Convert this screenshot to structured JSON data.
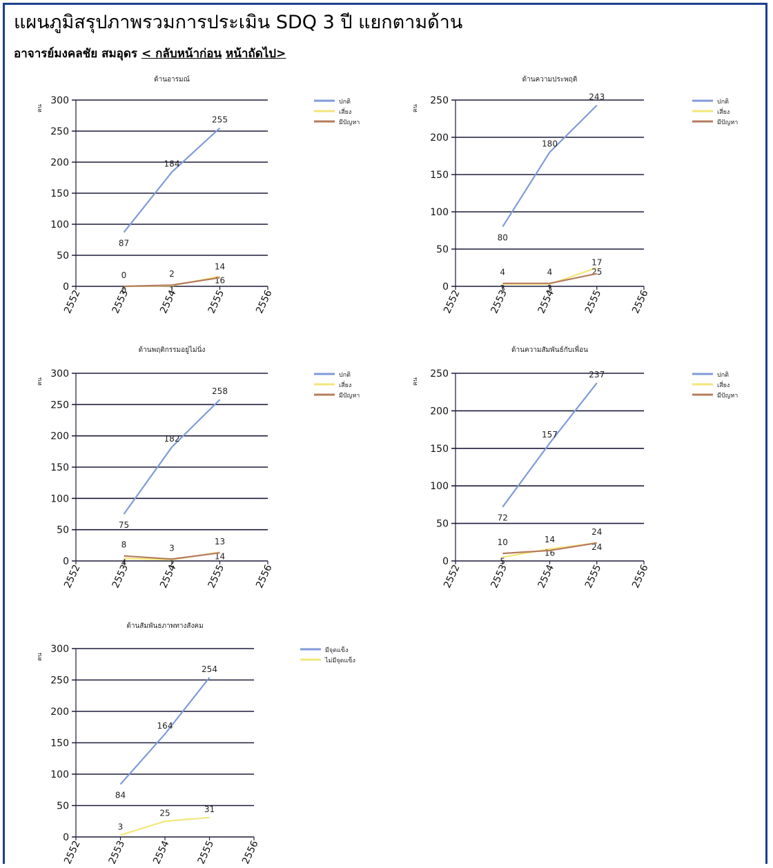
{
  "page": {
    "title": "แผนภูมิสรุปภาพรวมการประเมิน SDQ 3 ปี แยกตามด้าน",
    "person": "อาจารย์มงคลชัย สมอุดร",
    "prev_link": "< กลับหน้าก่อน",
    "next_link": "หน้าถัดไป>"
  },
  "colors": {
    "frame": "#1b3f8f",
    "normal": "#7f9ad8",
    "risk": "#f2e67a",
    "problem": "#b57a5c",
    "has_strength": "#7f9ad8",
    "no_strength": "#f2e67a",
    "gridline": "#1a1a3a"
  },
  "chart_data": [
    {
      "type": "line",
      "title": "ด้านอารมณ์",
      "ylabel": "คน",
      "categories": [
        "2552",
        "2553",
        "2554",
        "2555",
        "2556"
      ],
      "ylim": [
        0,
        300
      ],
      "yticks": [
        0,
        50,
        100,
        150,
        200,
        250,
        300
      ],
      "legend_position": "right",
      "series": [
        {
          "name": "ปกติ",
          "color_key": "normal",
          "values": [
            null,
            87,
            184,
            255,
            null
          ]
        },
        {
          "name": "เสี่ยง",
          "color_key": "risk",
          "values": [
            null,
            0,
            1,
            16,
            null
          ]
        },
        {
          "name": "มีปัญหา",
          "color_key": "problem",
          "values": [
            null,
            0,
            2,
            14,
            null
          ]
        }
      ]
    },
    {
      "type": "line",
      "title": "ด้านความประพฤติ",
      "ylabel": "คน",
      "categories": [
        "2552",
        "2553",
        "2554",
        "2555",
        "2556"
      ],
      "ylim": [
        0,
        250
      ],
      "yticks": [
        0,
        50,
        100,
        150,
        200,
        250
      ],
      "legend_position": "right",
      "series": [
        {
          "name": "ปกติ",
          "color_key": "normal",
          "values": [
            null,
            80,
            180,
            243,
            null
          ]
        },
        {
          "name": "เสี่ยง",
          "color_key": "risk",
          "values": [
            null,
            3,
            3,
            25,
            null
          ]
        },
        {
          "name": "มีปัญหา",
          "color_key": "problem",
          "values": [
            null,
            4,
            4,
            17,
            null
          ]
        }
      ]
    },
    {
      "type": "line",
      "title": "ด้านพฤติกรรมอยู่ไม่นิ่ง",
      "ylabel": "คน",
      "categories": [
        "2552",
        "2553",
        "2554",
        "2555",
        "2556"
      ],
      "ylim": [
        0,
        300
      ],
      "yticks": [
        0,
        50,
        100,
        150,
        200,
        250,
        300
      ],
      "legend_position": "right",
      "series": [
        {
          "name": "ปกติ",
          "color_key": "normal",
          "values": [
            null,
            75,
            182,
            258,
            null
          ]
        },
        {
          "name": "เสี่ยง",
          "color_key": "risk",
          "values": [
            null,
            4,
            2,
            14,
            null
          ]
        },
        {
          "name": "มีปัญหา",
          "color_key": "problem",
          "values": [
            null,
            8,
            3,
            13,
            null
          ]
        }
      ]
    },
    {
      "type": "line",
      "title": "ด้านความสัมพันธ์กับเพื่อน",
      "ylabel": "คน",
      "categories": [
        "2552",
        "2553",
        "2554",
        "2555",
        "2556"
      ],
      "ylim": [
        0,
        250
      ],
      "yticks": [
        0,
        50,
        100,
        150,
        200,
        250
      ],
      "legend_position": "right",
      "series": [
        {
          "name": "ปกติ",
          "color_key": "normal",
          "values": [
            null,
            72,
            157,
            237,
            null
          ]
        },
        {
          "name": "เสี่ยง",
          "color_key": "risk",
          "values": [
            null,
            5,
            16,
            24,
            null
          ]
        },
        {
          "name": "มีปัญหา",
          "color_key": "problem",
          "values": [
            null,
            10,
            14,
            24,
            null
          ]
        }
      ]
    },
    {
      "type": "line",
      "title": "ด้านสัมพันธภาพทางสังคม",
      "ylabel": "คน",
      "categories": [
        "2552",
        "2553",
        "2554",
        "2555",
        "2556"
      ],
      "ylim": [
        0,
        300
      ],
      "yticks": [
        0,
        50,
        100,
        150,
        200,
        250,
        300
      ],
      "legend_position": "right",
      "series": [
        {
          "name": "มีจุดแข็ง",
          "color_key": "has_strength",
          "values": [
            null,
            84,
            164,
            254,
            null
          ]
        },
        {
          "name": "ไม่มีจุดแข็ง",
          "color_key": "no_strength",
          "values": [
            null,
            3,
            25,
            31,
            null
          ]
        }
      ]
    }
  ]
}
